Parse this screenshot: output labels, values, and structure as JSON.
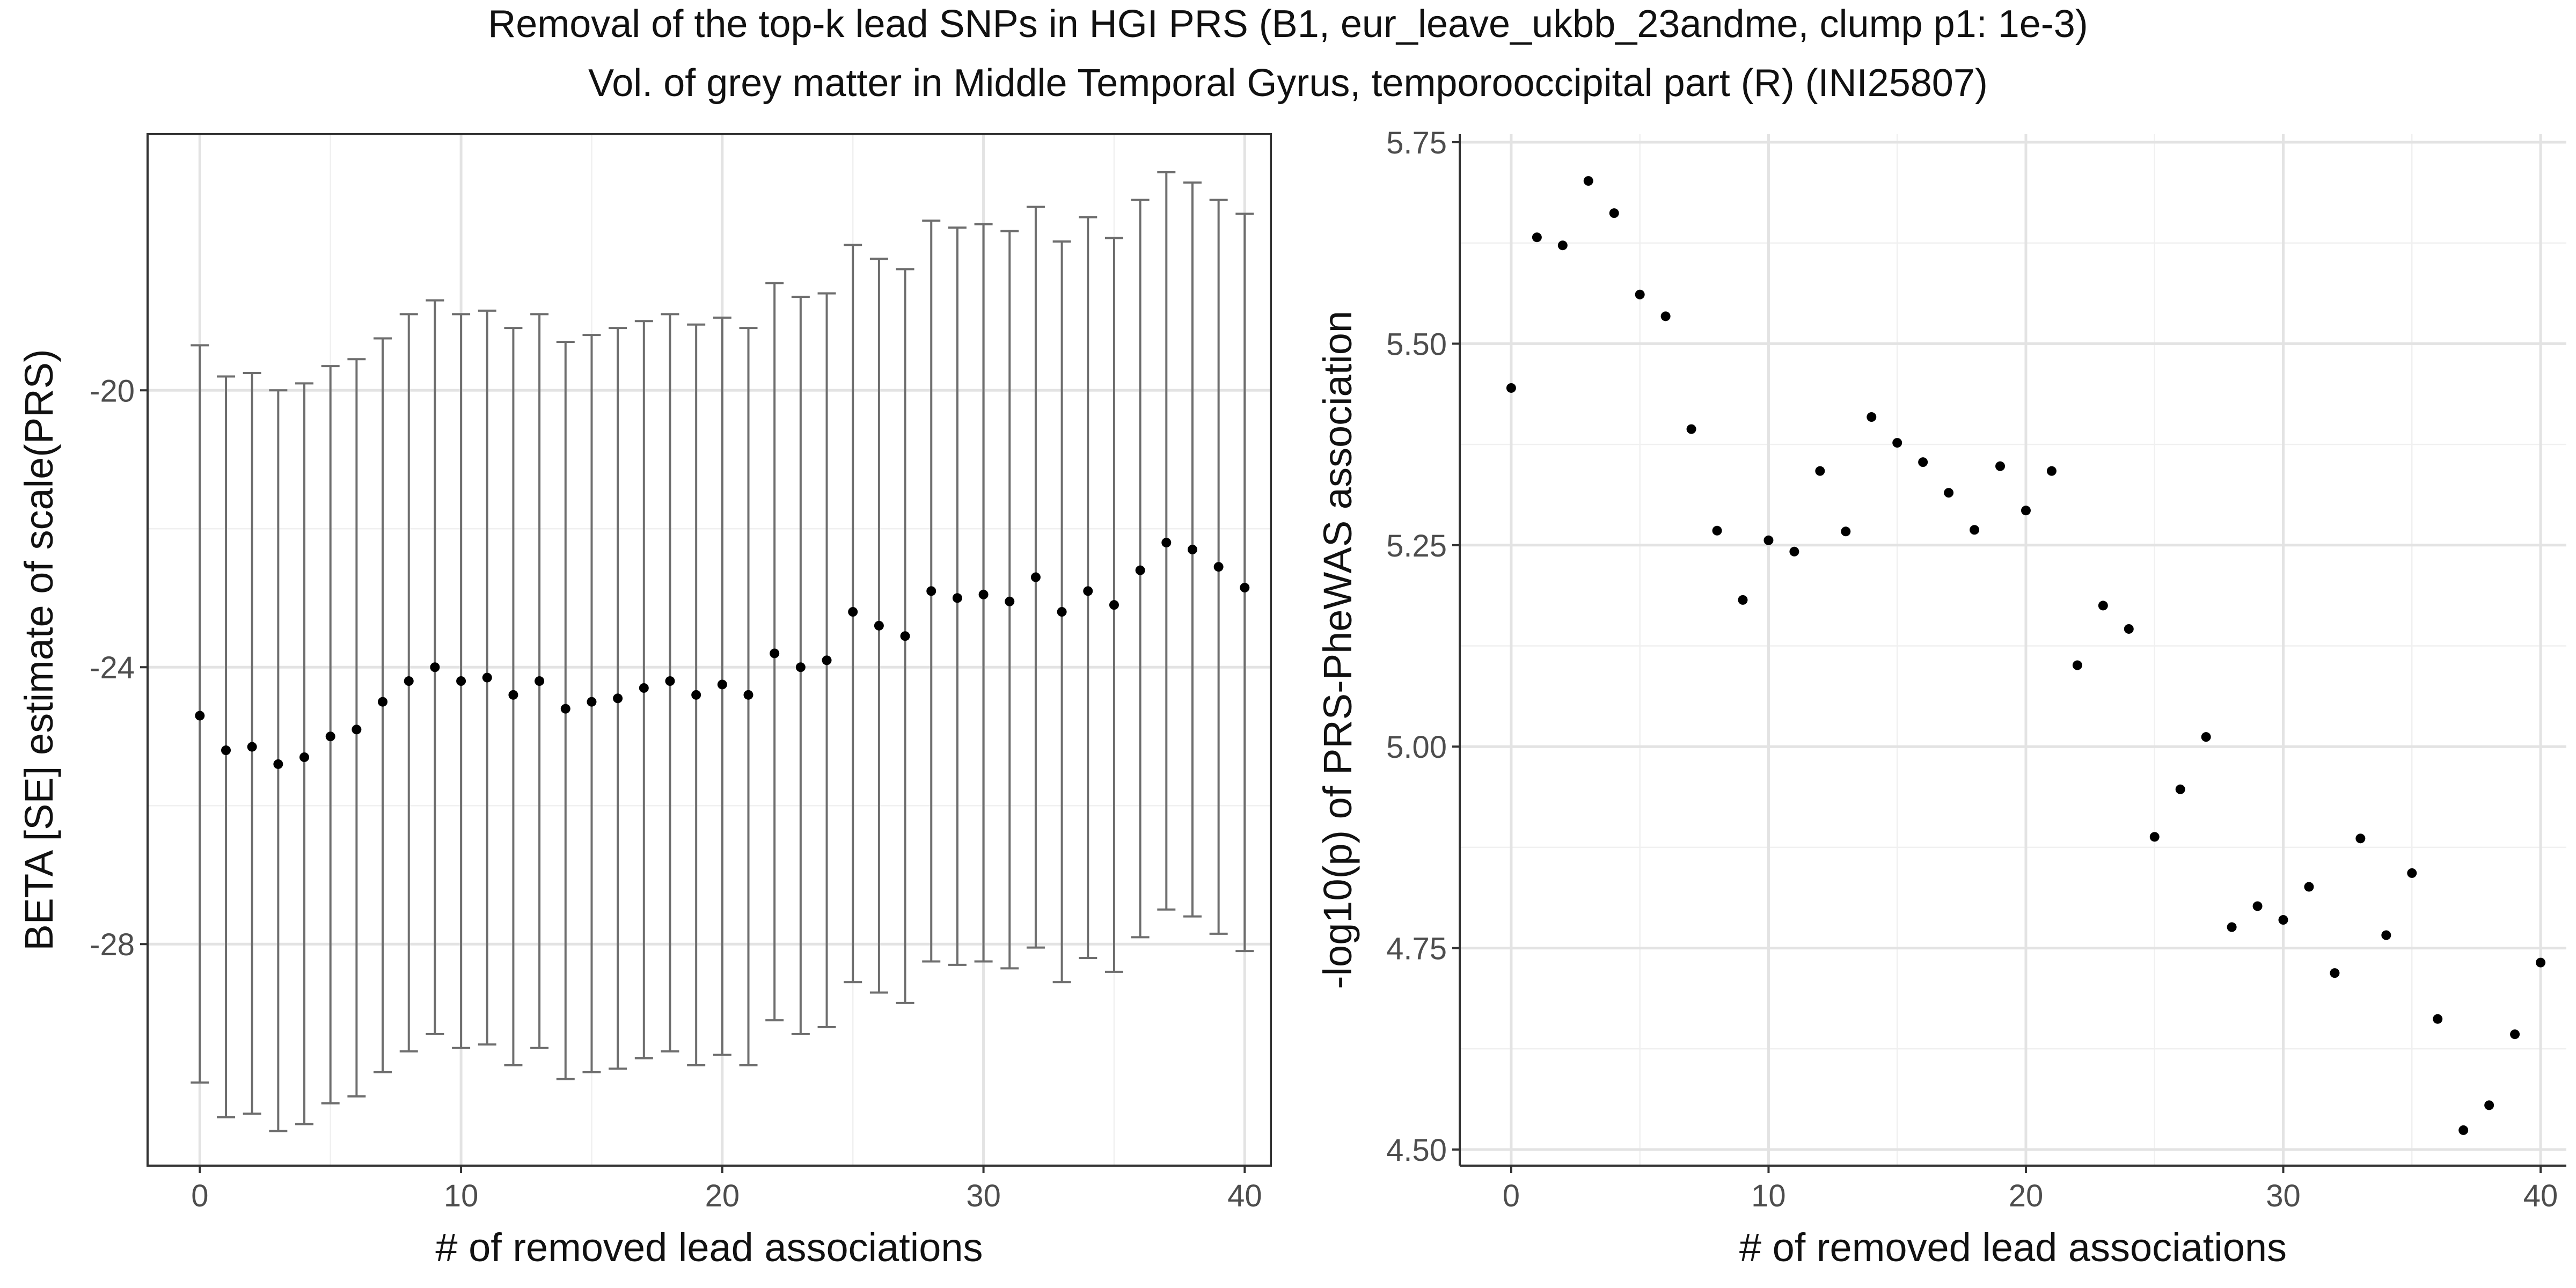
{
  "figure": {
    "title": "Removal of the top-k lead SNPs in HGI PRS (B1, eur_leave_ukbb_23andme, clump p1: 1e-3)",
    "subtitle": "Vol. of grey matter in Middle Temporal Gyrus, temporooccipital part (R) (INI25807)"
  },
  "chart_data": [
    {
      "type": "scatter",
      "error_bars": true,
      "xlabel": "# of removed lead associations",
      "ylabel": "BETA [SE] estimate of scale(PRS)",
      "xlim": [
        -2,
        41
      ],
      "ylim": [
        -31.2,
        -16.3
      ],
      "x_ticks": [
        0,
        10,
        20,
        30,
        40
      ],
      "y_ticks": [
        -20,
        -24,
        -28
      ],
      "grid": true,
      "x": [
        0,
        1,
        2,
        3,
        4,
        5,
        6,
        7,
        8,
        9,
        10,
        11,
        12,
        13,
        14,
        15,
        16,
        17,
        18,
        19,
        20,
        21,
        22,
        23,
        24,
        25,
        26,
        27,
        28,
        29,
        30,
        31,
        32,
        33,
        34,
        35,
        36,
        37,
        38,
        39,
        40
      ],
      "beta": [
        -24.7,
        -25.2,
        -25.15,
        -25.4,
        -25.3,
        -25.0,
        -24.9,
        -24.5,
        -24.2,
        -24.0,
        -24.2,
        -24.15,
        -24.4,
        -24.2,
        -24.6,
        -24.5,
        -24.45,
        -24.3,
        -24.2,
        -24.4,
        -24.25,
        -24.4,
        -23.8,
        -24.0,
        -23.9,
        -23.2,
        -23.4,
        -23.55,
        -22.9,
        -23.0,
        -22.95,
        -23.05,
        -22.7,
        -23.2,
        -22.9,
        -23.1,
        -22.6,
        -22.2,
        -22.3,
        -22.55,
        -22.85
      ],
      "lower": [
        -30.0,
        -30.5,
        -30.45,
        -30.7,
        -30.6,
        -30.3,
        -30.2,
        -29.85,
        -29.55,
        -29.3,
        -29.5,
        -29.45,
        -29.75,
        -29.5,
        -29.95,
        -29.85,
        -29.8,
        -29.65,
        -29.55,
        -29.75,
        -29.6,
        -29.75,
        -29.1,
        -29.3,
        -29.2,
        -28.55,
        -28.7,
        -28.85,
        -28.25,
        -28.3,
        -28.25,
        -28.35,
        -28.05,
        -28.55,
        -28.2,
        -28.4,
        -27.9,
        -27.5,
        -27.6,
        -27.85,
        -28.1
      ],
      "upper": [
        -19.35,
        -19.8,
        -19.75,
        -20.0,
        -19.9,
        -19.65,
        -19.55,
        -19.25,
        -18.9,
        -18.7,
        -18.9,
        -18.85,
        -19.1,
        -18.9,
        -19.3,
        -19.2,
        -19.1,
        -19.0,
        -18.9,
        -19.05,
        -18.95,
        -19.1,
        -18.45,
        -18.65,
        -18.6,
        -17.9,
        -18.1,
        -18.25,
        -17.55,
        -17.65,
        -17.6,
        -17.7,
        -17.35,
        -17.85,
        -17.5,
        -17.8,
        -17.25,
        -16.85,
        -17.0,
        -17.25,
        -17.45
      ]
    },
    {
      "type": "scatter",
      "xlabel": "# of removed lead associations",
      "ylabel": "-log10(p) of PRS-PheWAS association",
      "xlim": [
        -2,
        41
      ],
      "ylim": [
        4.48,
        5.76
      ],
      "x_ticks": [
        0,
        10,
        20,
        30,
        40
      ],
      "y_ticks": [
        4.5,
        4.75,
        5.0,
        5.25,
        5.5,
        5.75
      ],
      "y_tick_labels": [
        "4.50",
        "4.75",
        "5.00",
        "5.25",
        "5.50",
        "5.75"
      ],
      "grid": true,
      "x": [
        0,
        1,
        2,
        3,
        4,
        5,
        6,
        7,
        8,
        9,
        10,
        11,
        12,
        13,
        14,
        15,
        16,
        17,
        18,
        19,
        20,
        21,
        22,
        23,
        24,
        25,
        26,
        27,
        28,
        29,
        30,
        31,
        32,
        33,
        34,
        35,
        36,
        37,
        38,
        39,
        40
      ],
      "y": [
        5.445,
        5.632,
        5.622,
        5.702,
        5.662,
        5.561,
        5.534,
        5.394,
        5.268,
        5.182,
        5.256,
        5.242,
        5.342,
        5.267,
        5.409,
        5.377,
        5.353,
        5.315,
        5.269,
        5.348,
        5.293,
        5.342,
        5.101,
        5.175,
        5.146,
        4.888,
        4.947,
        5.012,
        4.776,
        4.802,
        4.785,
        4.826,
        4.719,
        4.886,
        4.766,
        4.843,
        4.662,
        4.524,
        4.555,
        4.643,
        4.732
      ]
    }
  ]
}
